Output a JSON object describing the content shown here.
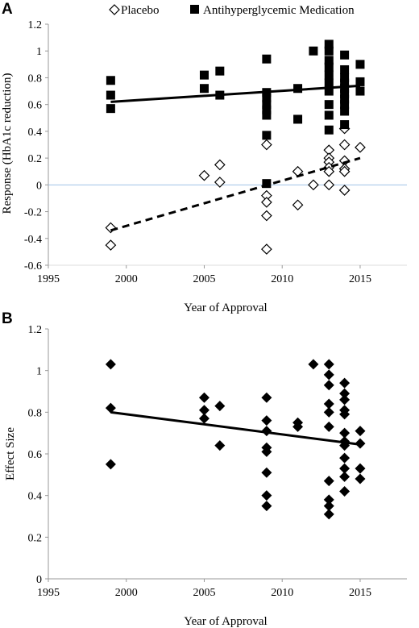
{
  "chart_data": [
    {
      "panel_label": "A",
      "type": "scatter",
      "xlabel": "Year of Approval",
      "ylabel": "Response (HbA1c reduction)",
      "xlim": [
        1995,
        2018
      ],
      "ylim": [
        -0.6,
        1.2
      ],
      "xticks": [
        1995,
        2000,
        2005,
        2010,
        2015
      ],
      "yticks": [
        -0.6,
        -0.4,
        -0.2,
        0,
        0.2,
        0.4,
        0.6,
        0.8,
        1,
        1.2
      ],
      "ytick_labels": [
        "-0.6",
        "-0.4",
        "-0.2",
        "0",
        "0.2",
        "0.4",
        "0.6",
        "0.8",
        "1",
        "1.2"
      ],
      "legend_position": "top",
      "series": [
        {
          "name": "Placebo",
          "marker": "diamond-open",
          "points": [
            [
              1999,
              -0.32
            ],
            [
              1999,
              -0.45
            ],
            [
              2005,
              0.07
            ],
            [
              2006,
              0.15
            ],
            [
              2006,
              0.02
            ],
            [
              2009,
              0.3
            ],
            [
              2009,
              -0.08
            ],
            [
              2009,
              -0.13
            ],
            [
              2009,
              -0.23
            ],
            [
              2009,
              -0.48
            ],
            [
              2011,
              0.1
            ],
            [
              2011,
              -0.15
            ],
            [
              2012,
              0.0
            ],
            [
              2013,
              0.26
            ],
            [
              2013,
              0.2
            ],
            [
              2013,
              0.17
            ],
            [
              2013,
              0.13
            ],
            [
              2013,
              0.1
            ],
            [
              2013,
              0.0
            ],
            [
              2014,
              0.42
            ],
            [
              2014,
              0.3
            ],
            [
              2014,
              0.18
            ],
            [
              2014,
              0.12
            ],
            [
              2014,
              0.1
            ],
            [
              2014,
              -0.04
            ],
            [
              2015,
              0.28
            ]
          ],
          "trendline": {
            "style": "dashed",
            "x": [
              1999,
              2015
            ],
            "y": [
              -0.34,
              0.2
            ]
          }
        },
        {
          "name": "Antihyperglycemic Medication",
          "marker": "square-filled",
          "points": [
            [
              1999,
              0.78
            ],
            [
              1999,
              0.67
            ],
            [
              1999,
              0.57
            ],
            [
              2005,
              0.82
            ],
            [
              2005,
              0.72
            ],
            [
              2006,
              0.85
            ],
            [
              2006,
              0.67
            ],
            [
              2009,
              0.94
            ],
            [
              2009,
              0.69
            ],
            [
              2009,
              0.65
            ],
            [
              2009,
              0.6
            ],
            [
              2009,
              0.56
            ],
            [
              2009,
              0.52
            ],
            [
              2009,
              0.37
            ],
            [
              2009,
              0.01
            ],
            [
              2011,
              0.72
            ],
            [
              2011,
              0.49
            ],
            [
              2012,
              1.0
            ],
            [
              2013,
              1.05
            ],
            [
              2013,
              1.0
            ],
            [
              2013,
              0.93
            ],
            [
              2013,
              0.88
            ],
            [
              2013,
              0.82
            ],
            [
              2013,
              0.76
            ],
            [
              2013,
              0.7
            ],
            [
              2013,
              0.6
            ],
            [
              2013,
              0.52
            ],
            [
              2013,
              0.41
            ],
            [
              2014,
              0.97
            ],
            [
              2014,
              0.86
            ],
            [
              2014,
              0.8
            ],
            [
              2014,
              0.76
            ],
            [
              2014,
              0.72
            ],
            [
              2014,
              0.68
            ],
            [
              2014,
              0.64
            ],
            [
              2014,
              0.6
            ],
            [
              2014,
              0.55
            ],
            [
              2014,
              0.45
            ],
            [
              2015,
              0.9
            ],
            [
              2015,
              0.77
            ],
            [
              2015,
              0.7
            ]
          ],
          "trendline": {
            "style": "solid",
            "x": [
              1999,
              2015
            ],
            "y": [
              0.62,
              0.74
            ]
          }
        }
      ]
    },
    {
      "panel_label": "B",
      "type": "scatter",
      "xlabel": "Year of Approval",
      "ylabel": "Effect Size",
      "xlim": [
        1995,
        2018
      ],
      "ylim": [
        0,
        1.2
      ],
      "xticks": [
        1995,
        2000,
        2005,
        2010,
        2015
      ],
      "yticks": [
        0,
        0.2,
        0.4,
        0.6,
        0.8,
        1,
        1.2
      ],
      "ytick_labels": [
        "0",
        "0.2",
        "0.4",
        "0.6",
        "0.8",
        "1",
        "1.2"
      ],
      "series": [
        {
          "marker": "diamond-filled",
          "points": [
            [
              1999,
              1.03
            ],
            [
              1999,
              0.82
            ],
            [
              1999,
              0.55
            ],
            [
              2005,
              0.87
            ],
            [
              2005,
              0.81
            ],
            [
              2005,
              0.77
            ],
            [
              2006,
              0.83
            ],
            [
              2006,
              0.64
            ],
            [
              2009,
              0.87
            ],
            [
              2009,
              0.76
            ],
            [
              2009,
              0.71
            ],
            [
              2009,
              0.63
            ],
            [
              2009,
              0.61
            ],
            [
              2009,
              0.51
            ],
            [
              2009,
              0.4
            ],
            [
              2009,
              0.35
            ],
            [
              2011,
              0.75
            ],
            [
              2011,
              0.73
            ],
            [
              2012,
              1.03
            ],
            [
              2013,
              1.03
            ],
            [
              2013,
              0.98
            ],
            [
              2013,
              0.93
            ],
            [
              2013,
              0.84
            ],
            [
              2013,
              0.8
            ],
            [
              2013,
              0.73
            ],
            [
              2013,
              0.47
            ],
            [
              2013,
              0.38
            ],
            [
              2013,
              0.35
            ],
            [
              2013,
              0.31
            ],
            [
              2014,
              0.94
            ],
            [
              2014,
              0.89
            ],
            [
              2014,
              0.86
            ],
            [
              2014,
              0.81
            ],
            [
              2014,
              0.79
            ],
            [
              2014,
              0.7
            ],
            [
              2014,
              0.66
            ],
            [
              2014,
              0.64
            ],
            [
              2014,
              0.58
            ],
            [
              2014,
              0.53
            ],
            [
              2014,
              0.49
            ],
            [
              2014,
              0.42
            ],
            [
              2015,
              0.71
            ],
            [
              2015,
              0.65
            ],
            [
              2015,
              0.53
            ],
            [
              2015,
              0.48
            ]
          ],
          "trendline": {
            "style": "solid",
            "x": [
              1999,
              2015
            ],
            "y": [
              0.8,
              0.645
            ]
          }
        }
      ]
    }
  ]
}
